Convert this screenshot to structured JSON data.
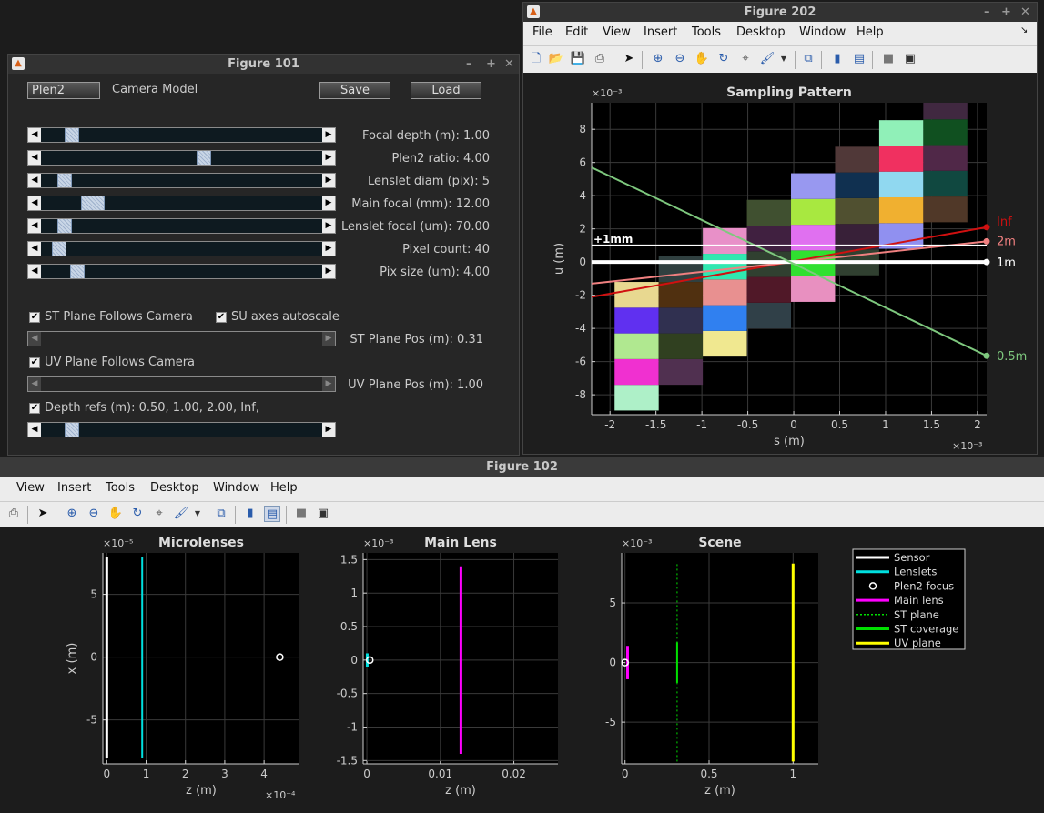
{
  "fig101": {
    "title": "Figure 101",
    "popup": "Plen2",
    "camera_model": "Camera Model",
    "save": "Save",
    "load": "Load",
    "sliders": [
      {
        "label": "Focal depth (m): 1.00",
        "pos": 0.09
      },
      {
        "label": "Plen2 ratio: 4.00",
        "pos": 0.585
      },
      {
        "label": "Lenslet diam (pix): 5",
        "pos": 0.06
      },
      {
        "label": "Main focal (mm): 12.00",
        "pos": 0.15
      },
      {
        "label": "Lenslet focal (um): 70.00",
        "pos": 0.06
      },
      {
        "label": "Pixel count: 40",
        "pos": 0.04
      },
      {
        "label": "Pix size (um): 4.00",
        "pos": 0.11
      }
    ],
    "st_follow": "ST Plane Follows Camera",
    "su_autoscale": "SU axes autoscale",
    "st_pos": "ST Plane Pos (m): 0.31",
    "uv_follow": "UV Plane Follows Camera",
    "uv_pos": "UV Plane Pos (m): 1.00",
    "depth_refs": "Depth refs (m): 0.50, 1.00, 2.00, Inf,",
    "depth_slider_pos": 0.09
  },
  "fig202": {
    "title": "Figure 202",
    "menu": [
      "File",
      "Edit",
      "View",
      "Insert",
      "Tools",
      "Desktop",
      "Window",
      "Help"
    ]
  },
  "fig102": {
    "title": "Figure 102",
    "menu": [
      "View",
      "Insert",
      "Tools",
      "Desktop",
      "Window",
      "Help"
    ]
  },
  "colors": {
    "accent_red": "#d01010",
    "pink": "#f08080",
    "green": "#7ec87e",
    "cyan": "#00e0e0",
    "magenta": "#ff00ff",
    "yellow": "#ffff00"
  },
  "chart_data": [
    {
      "type": "scatter",
      "title": "Sampling Pattern",
      "xlabel": "s (m)",
      "ylabel": "u (m)",
      "x_exponent": "×10⁻³",
      "y_exponent": "×10⁻³",
      "xlim": [
        -2.2,
        2.1
      ],
      "ylim": [
        -9.2,
        9.6
      ],
      "xticks": [
        -2,
        -1.5,
        -1,
        -0.5,
        0,
        0.5,
        1,
        1.5,
        2
      ],
      "yticks": [
        -8,
        -6,
        -4,
        -2,
        0,
        2,
        4,
        6,
        8
      ],
      "xtick_labels": [
        "-2",
        "-1.5",
        "-1",
        "-0.5",
        "0",
        "0.5",
        "1",
        "1.5",
        "2"
      ],
      "ytick_labels": [
        "-8",
        "-6",
        "-4",
        "-2",
        "0",
        "2",
        "4",
        "6",
        "8"
      ],
      "cell_columns": [
        {
          "x0": -1.95,
          "x1": -1.47,
          "y0": -8.95,
          "colors": [
            "#aef0c8",
            "#f030d0",
            "#b0e890",
            "#6030f0",
            "#e8d890"
          ]
        },
        {
          "x0": -1.47,
          "x1": -0.99,
          "y0": -7.4,
          "colors": [
            "#503050",
            "#304020",
            "#303050",
            "#503010",
            "#304040"
          ]
        },
        {
          "x0": -0.99,
          "x1": -0.51,
          "y0": -5.7,
          "colors": [
            "#f0e890",
            "#3080f0",
            "#e89090",
            "#30e8b0",
            "#e890c8"
          ]
        },
        {
          "x0": -0.51,
          "x1": -0.03,
          "y0": -4.0,
          "colors": [
            "#304048",
            "#501828",
            "#304030",
            "#402040",
            "#405030"
          ]
        },
        {
          "x0": -0.03,
          "x1": 0.45,
          "y0": -2.4,
          "colors": [
            "#e890c0",
            "#30e030",
            "#e070f0",
            "#a8e840",
            "#9898f0"
          ]
        },
        {
          "x0": 0.45,
          "x1": 0.93,
          "y0": -0.8,
          "colors": [
            "#304030",
            "#382038",
            "#505030",
            "#103050",
            "#503838"
          ]
        },
        {
          "x0": 0.93,
          "x1": 1.41,
          "y0": 0.8,
          "colors": [
            "#9090f0",
            "#f0b030",
            "#90d8f0",
            "#f03060",
            "#90f0b8"
          ]
        },
        {
          "x0": 1.41,
          "x1": 1.89,
          "y0": 2.4,
          "colors": [
            "#503828",
            "#104840",
            "#502848",
            "#105020",
            "#402840"
          ]
        }
      ],
      "series": [
        {
          "name": "Inf",
          "color": "#d01010",
          "x": [
            -2.2,
            2.1
          ],
          "y": [
            -2.1,
            2.1
          ]
        },
        {
          "name": "2m",
          "color": "#f08080",
          "x": [
            -2.2,
            2.1
          ],
          "y": [
            -1.3,
            1.25
          ]
        },
        {
          "name": "1m",
          "color": "#ffffff",
          "x": [
            -2.2,
            2.1
          ],
          "y": [
            0,
            0
          ]
        },
        {
          "name": "0.5m",
          "color": "#7ec87e",
          "x": [
            -2.2,
            2.1
          ],
          "y": [
            5.7,
            -5.65
          ]
        },
        {
          "name": "+1mm",
          "color": "#ffffff",
          "x": [
            -2.2,
            2.1
          ],
          "y": [
            1,
            1
          ]
        }
      ]
    },
    {
      "type": "line",
      "title": "Microlenses",
      "xlabel": "z (m)",
      "ylabel": "x (m)",
      "x_exponent": "×10⁻⁴",
      "y_exponent": "×10⁻⁵",
      "xlim": [
        -0.1,
        4.9
      ],
      "ylim": [
        -8.5,
        8.3
      ],
      "xticks": [
        0,
        1,
        2,
        3,
        4
      ],
      "yticks": [
        -5,
        0,
        5
      ],
      "xtick_labels": [
        "0",
        "1",
        "2",
        "3",
        "4"
      ],
      "ytick_labels": [
        "-5",
        "0",
        "5"
      ],
      "lines": [
        {
          "name": "Sensor",
          "color": "#ffffff",
          "x": [
            0,
            0
          ],
          "y": [
            -8,
            8
          ],
          "width": 3
        },
        {
          "name": "Lenslets",
          "color": "#00e0e0",
          "x": [
            0.9,
            0.9
          ],
          "y": [
            -8,
            8
          ],
          "width": 2
        }
      ],
      "points": [
        {
          "name": "Plen2 focus",
          "x": 4.4,
          "y": 0
        }
      ]
    },
    {
      "type": "line",
      "title": "Main Lens",
      "xlabel": "z (m)",
      "ylabel": "",
      "x_exponent": "",
      "y_exponent": "×10⁻³",
      "xlim": [
        -0.0005,
        0.026
      ],
      "ylim": [
        -1.55,
        1.6
      ],
      "xticks": [
        0,
        0.01,
        0.02
      ],
      "yticks": [
        -1.5,
        -1,
        -0.5,
        0,
        0.5,
        1,
        1.5
      ],
      "xtick_labels": [
        "0",
        "0.01",
        "0.02"
      ],
      "ytick_labels": [
        "-1.5",
        "-1",
        "-0.5",
        "0",
        "0.5",
        "1",
        "1.5"
      ],
      "lines": [
        {
          "name": "Main lens",
          "color": "#ff00ff",
          "x": [
            0.0128,
            0.0128
          ],
          "y": [
            -1.4,
            1.4
          ],
          "width": 3
        },
        {
          "name": "Sensor",
          "color": "#00e0e0",
          "x": [
            5e-05,
            5e-05
          ],
          "y": [
            -0.1,
            0.1
          ],
          "width": 3
        }
      ],
      "points": [
        {
          "name": "Plen2 focus",
          "x": 0.0004,
          "y": 0
        }
      ]
    },
    {
      "type": "line",
      "title": "Scene",
      "xlabel": "z (m)",
      "ylabel": "",
      "x_exponent": "",
      "y_exponent": "×10⁻³",
      "xlim": [
        -0.02,
        1.15
      ],
      "ylim": [
        -8.5,
        9.2
      ],
      "xticks": [
        0,
        0.5,
        1
      ],
      "yticks": [
        -5,
        0,
        5
      ],
      "xtick_labels": [
        "0",
        "0.5",
        "1"
      ],
      "ytick_labels": [
        "-5",
        "0",
        "5"
      ],
      "lines": [
        {
          "name": "ST plane",
          "color": "#00e000",
          "x": [
            0.31,
            0.31
          ],
          "y": [
            -8.3,
            8.3
          ],
          "width": 1,
          "dotted": true
        },
        {
          "name": "ST coverage",
          "color": "#00e000",
          "x": [
            0.31,
            0.31
          ],
          "y": [
            -1.7,
            1.7
          ],
          "width": 2
        },
        {
          "name": "UV plane",
          "color": "#ffff00",
          "x": [
            1.0,
            1.0
          ],
          "y": [
            -8.3,
            8.3
          ],
          "width": 3
        },
        {
          "name": "Main lens",
          "color": "#ff00ff",
          "x": [
            0.015,
            0.015
          ],
          "y": [
            -1.4,
            1.4
          ],
          "width": 3
        }
      ],
      "points": [
        {
          "name": "Plen2 focus",
          "x": 0.0,
          "y": 0
        }
      ],
      "legend": [
        {
          "label": "Sensor",
          "color": "#ffffff",
          "style": "solid"
        },
        {
          "label": "Lenslets",
          "color": "#00e0e0",
          "style": "solid"
        },
        {
          "label": "Plen2 focus",
          "color": "#ffffff",
          "style": "marker"
        },
        {
          "label": "Main lens",
          "color": "#ff00ff",
          "style": "solid"
        },
        {
          "label": "ST plane",
          "color": "#00e000",
          "style": "dotted"
        },
        {
          "label": "ST coverage",
          "color": "#00e000",
          "style": "solid"
        },
        {
          "label": "UV plane",
          "color": "#ffff00",
          "style": "solid"
        }
      ]
    }
  ]
}
